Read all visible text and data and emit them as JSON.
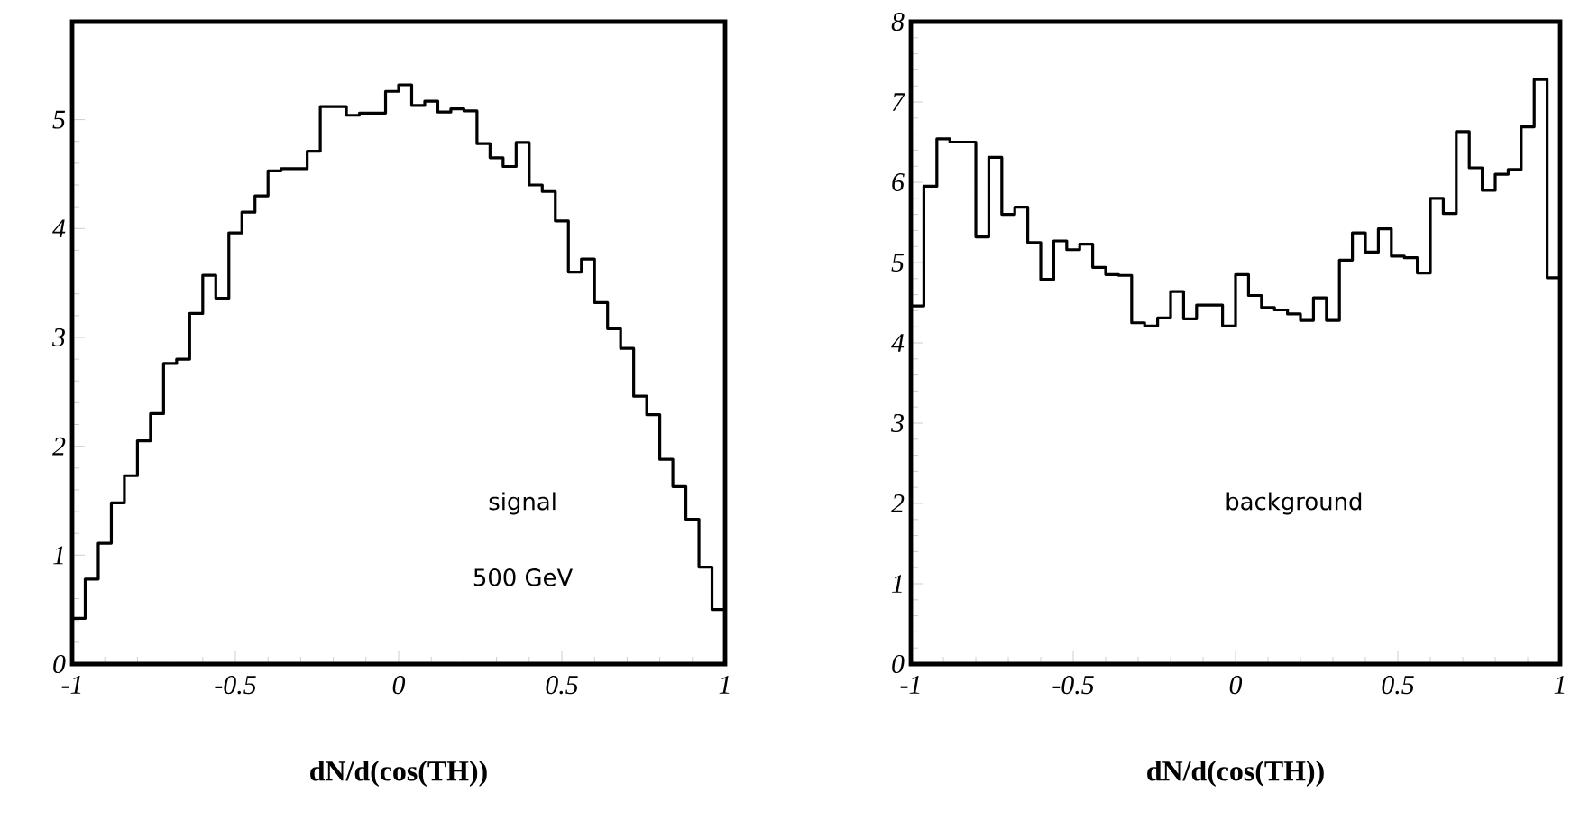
{
  "chart_data": [
    {
      "type": "histogram",
      "xlabel": "dN/d(cos(TH))",
      "color": "#000000",
      "bins": [
        -1,
        -0.96,
        -0.92,
        -0.88,
        -0.84,
        -0.8,
        -0.76,
        -0.72,
        -0.68,
        -0.64,
        -0.6,
        -0.56,
        -0.52,
        -0.48,
        -0.44,
        -0.4,
        -0.36,
        -0.32,
        -0.28,
        -0.24,
        -0.2,
        -0.16,
        -0.12,
        -0.08,
        -0.04,
        0,
        0.04,
        0.08,
        0.12,
        0.16,
        0.2,
        0.24,
        0.28,
        0.32,
        0.36,
        0.4,
        0.44,
        0.48,
        0.52,
        0.56,
        0.6,
        0.64,
        0.68,
        0.72,
        0.76,
        0.8,
        0.84,
        0.88,
        0.92,
        0.96,
        1
      ],
      "values": [
        0.42,
        0.78,
        1.11,
        1.48,
        1.73,
        2.05,
        2.3,
        2.76,
        2.8,
        3.22,
        3.57,
        3.36,
        3.96,
        4.15,
        4.3,
        4.53,
        4.55,
        4.55,
        4.71,
        5.12,
        5.12,
        5.04,
        5.06,
        5.06,
        5.26,
        5.32,
        5.13,
        5.17,
        5.07,
        5.1,
        5.08,
        4.78,
        4.65,
        4.57,
        4.79,
        4.4,
        4.34,
        4.07,
        3.6,
        3.72,
        3.32,
        3.08,
        2.9,
        2.46,
        2.29,
        1.88,
        1.63,
        1.33,
        0.89,
        0.5
      ],
      "xlim": [
        -1,
        1
      ],
      "ylim": [
        0,
        5.9
      ],
      "xticks": [
        -1,
        -0.5,
        0,
        0.5,
        1
      ],
      "yticks": [
        0,
        1,
        2,
        3,
        4,
        5
      ],
      "annotations": [
        "signal",
        "500 GeV"
      ]
    },
    {
      "type": "histogram",
      "xlabel": "dN/d(cos(TH))",
      "color": "#000000",
      "bins": [
        -1,
        -0.96,
        -0.92,
        -0.88,
        -0.84,
        -0.8,
        -0.76,
        -0.72,
        -0.68,
        -0.64,
        -0.6,
        -0.56,
        -0.52,
        -0.48,
        -0.44,
        -0.4,
        -0.36,
        -0.32,
        -0.28,
        -0.24,
        -0.2,
        -0.16,
        -0.12,
        -0.08,
        -0.04,
        0,
        0.04,
        0.08,
        0.12,
        0.16,
        0.2,
        0.24,
        0.28,
        0.32,
        0.36,
        0.4,
        0.44,
        0.48,
        0.52,
        0.56,
        0.6,
        0.64,
        0.68,
        0.72,
        0.76,
        0.8,
        0.84,
        0.88,
        0.92,
        0.96,
        1
      ],
      "values": [
        4.46,
        5.95,
        6.54,
        6.5,
        6.5,
        5.32,
        6.31,
        5.6,
        5.69,
        5.25,
        4.79,
        5.27,
        5.16,
        5.23,
        4.94,
        4.85,
        4.84,
        4.25,
        4.21,
        4.31,
        4.64,
        4.3,
        4.47,
        4.47,
        4.21,
        4.85,
        4.59,
        4.44,
        4.41,
        4.36,
        4.28,
        4.56,
        4.28,
        5.03,
        5.37,
        5.13,
        5.42,
        5.08,
        5.06,
        4.87,
        5.8,
        5.61,
        6.63,
        6.18,
        5.9,
        6.1,
        6.16,
        6.69,
        7.28,
        4.81
      ],
      "xlim": [
        -1,
        1
      ],
      "ylim": [
        0,
        8
      ],
      "xticks": [
        -1,
        -0.5,
        0,
        0.5,
        1
      ],
      "yticks": [
        0,
        1,
        2,
        3,
        4,
        5,
        6,
        7,
        8
      ],
      "annotations": [
        "background"
      ]
    }
  ]
}
